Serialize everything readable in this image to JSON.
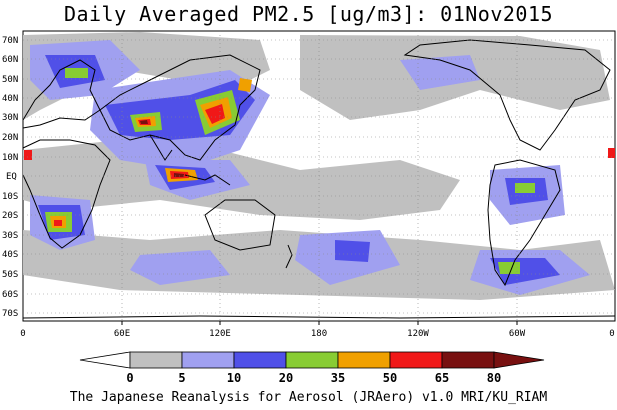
{
  "title": "Daily Averaged PM2.5 [ug/m3]: 01Nov2015",
  "footer": "The Japanese Reanalysis for Aerosol (JRAero) v1.0 MRI/KU_RIAM",
  "map": {
    "lat_labels": [
      "70N",
      "60N",
      "50N",
      "40N",
      "30N",
      "20N",
      "10N",
      "EQ",
      "10S",
      "20S",
      "30S",
      "40S",
      "50S",
      "60S",
      "70S"
    ],
    "lon_labels": [
      "0",
      "60E",
      "120E",
      "180",
      "120W",
      "60W",
      "0"
    ],
    "ocean_color": "#ffffff",
    "land_outline_color": "#000000"
  },
  "colorbar": {
    "labels": [
      "0",
      "5",
      "10",
      "20",
      "35",
      "50",
      "65",
      "80"
    ],
    "colors": [
      "#ffffff",
      "#c0c0c0",
      "#a0a0f0",
      "#5050e8",
      "#88cc33",
      "#f0a000",
      "#f01818",
      "#781010"
    ]
  }
}
